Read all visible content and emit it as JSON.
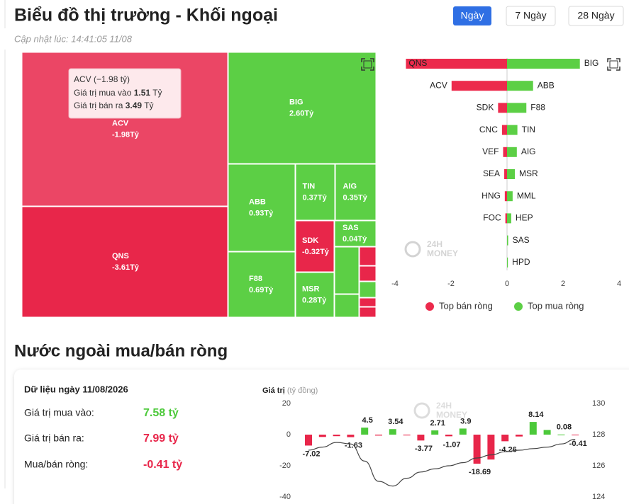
{
  "header": {
    "title": "Biểu đồ thị trường - Khối ngoại",
    "updated": "Cập nhật lúc: 14:41:05 11/08",
    "tabs": [
      "Ngày",
      "7 Ngày",
      "28 Ngày"
    ]
  },
  "tooltip": {
    "title": "ACV (−1.98 tỷ)",
    "rows": [
      {
        "label": "Giá trị mua vào",
        "value": "1.51",
        "unit": "Tỷ"
      },
      {
        "label": "Giá trị bán ra",
        "value": "3.49",
        "unit": "Tỷ"
      }
    ]
  },
  "watermark": [
    "24H",
    "MONEY"
  ],
  "section2": {
    "title": "Nước ngoài mua/bán ròng",
    "card_title": "Dữ liệu ngày 11/08/2026",
    "rows": [
      {
        "label": "Giá trị mua vào:",
        "value": "7.58 tỷ"
      },
      {
        "label": "Giá trị bán ra:",
        "value": "7.99 tỷ"
      },
      {
        "label": "Mua/bán ròng:",
        "value": "-0.41 tỷ"
      }
    ]
  },
  "chart_data": [
    {
      "type": "treemap",
      "categories": [
        "ACV",
        "BIG",
        "QNS",
        "ABB",
        "TIN",
        "AIG",
        "SDK",
        "SAS",
        "F88",
        "MSR"
      ],
      "values": [
        -1.98,
        2.6,
        -3.61,
        0.93,
        0.37,
        0.35,
        -0.32,
        0.04,
        0.69,
        0.28
      ],
      "value_labels": [
        "-1.98Tỷ",
        "2.60Tỷ",
        "-3.61Tỷ",
        "0.93Tỷ",
        "0.37Tỷ",
        "0.35Tỷ",
        "-0.32Tỷ",
        "0.04Tỷ",
        "0.69Tỷ",
        "0.28Tỷ"
      ],
      "negative_color": "#e8264a",
      "positive_color": "#5ccf45"
    },
    {
      "type": "diverging-bar",
      "series": [
        {
          "name": "Top bán ròng",
          "color": "#ec2a4c",
          "categories": [
            "QNS",
            "ACV",
            "SDK",
            "CNC",
            "VEF",
            "SEA",
            "HNG",
            "FOC",
            null,
            null
          ],
          "values": [
            -3.61,
            -1.98,
            -0.32,
            -0.18,
            -0.14,
            -0.1,
            -0.08,
            -0.06,
            null,
            null
          ]
        },
        {
          "name": "Top mua ròng",
          "color": "#5ccf45",
          "categories": [
            "BIG",
            "ABB",
            "F88",
            "TIN",
            "AIG",
            "MSR",
            "MML",
            "HEP",
            "SAS",
            "HPD"
          ],
          "values": [
            2.6,
            0.93,
            0.69,
            0.37,
            0.35,
            0.28,
            0.2,
            0.15,
            0.04,
            0.03
          ]
        }
      ],
      "xlim": [
        -4,
        4
      ],
      "xticks": [
        -4,
        -2,
        0,
        2,
        4
      ],
      "legend": "bottom"
    },
    {
      "type": "bar-line",
      "ylabel": "Giá trị",
      "yunit": "(tỷ đồng)",
      "categories": [
        null,
        null,
        null,
        null,
        null,
        null,
        null,
        null,
        null,
        null,
        null,
        null,
        null,
        null,
        null,
        null,
        null,
        null,
        null,
        null
      ],
      "series": [
        {
          "type": "bar",
          "negative_color": "#e8264a",
          "positive_color": "#4cc93a",
          "values": [
            -7.02,
            -1.5,
            -1.0,
            -1.63,
            4.5,
            -0.6,
            3.54,
            -0.5,
            -3.77,
            2.71,
            -1.07,
            3.9,
            -18.69,
            -16.0,
            -4.26,
            -1.2,
            8.14,
            3.0,
            0.08,
            -0.41
          ],
          "value_labels": [
            "-7.02",
            null,
            null,
            "-1.63",
            "4.5",
            null,
            "3.54",
            null,
            "-3.77",
            "2.71",
            "-1.07",
            "3.9",
            "-18.69",
            null,
            "-4.26",
            null,
            "8.14",
            null,
            "0.08",
            "-0.41"
          ]
        },
        {
          "type": "line",
          "axis": "y2",
          "color": "#444444",
          "values": [
            127.0,
            127.2,
            127.5,
            127.4,
            126.3,
            125.0,
            124.7,
            125.2,
            125.6,
            125.8,
            126.0,
            126.2,
            126.5,
            126.7,
            126.9,
            127.0,
            127.1,
            127.2,
            127.4,
            127.7
          ]
        }
      ],
      "ylim": [
        -40,
        20
      ],
      "yticks": [
        -40,
        -20,
        0,
        20
      ],
      "y2lim": [
        124,
        130
      ],
      "y2ticks": [
        124,
        126,
        128,
        130
      ],
      "grid": false
    }
  ]
}
